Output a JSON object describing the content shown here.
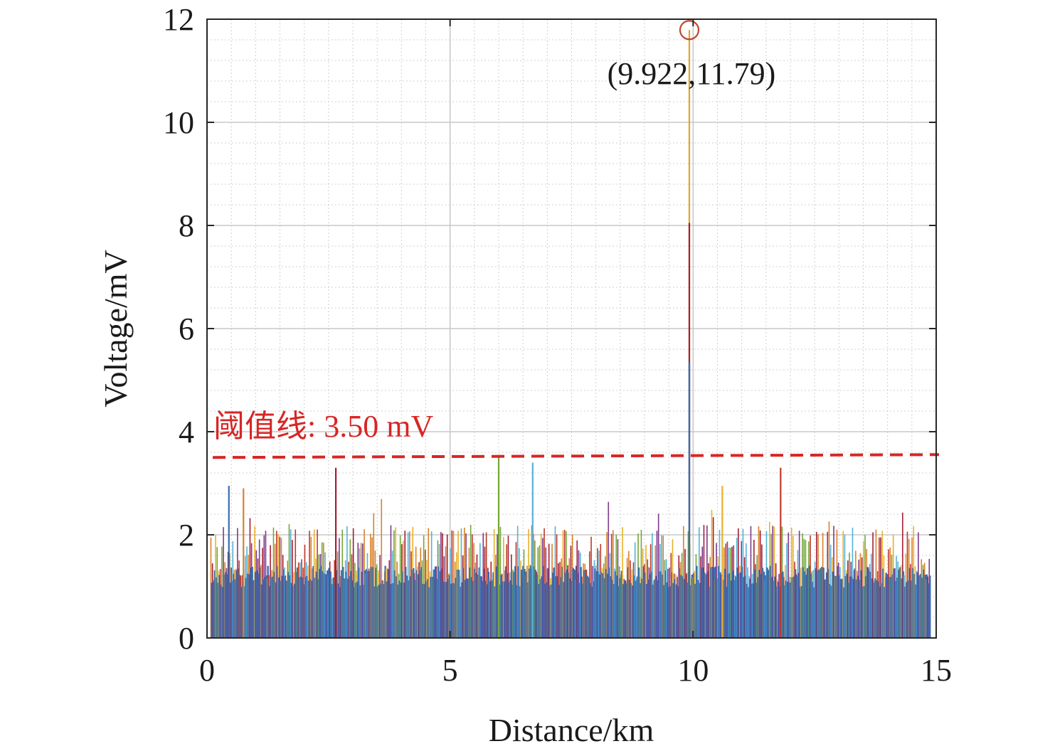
{
  "chart_data": {
    "type": "line",
    "title": "",
    "xlabel": "Distance/km",
    "ylabel": "Voltage/mV",
    "xlim": [
      0,
      15
    ],
    "ylim": [
      0,
      12
    ],
    "x_ticks": [
      0,
      5,
      10,
      15
    ],
    "y_ticks": [
      0,
      2,
      4,
      6,
      8,
      10,
      12
    ],
    "x_tick_labels": [
      "0",
      "5",
      "10",
      "15"
    ],
    "y_tick_labels": [
      "0",
      "2",
      "4",
      "6",
      "8",
      "10",
      "12"
    ],
    "grid": true,
    "minor_grid": true,
    "background_noise": {
      "x_range": [
        0.08,
        14.88
      ],
      "baseline_max": 1.4,
      "typical_peak": 2.0
    },
    "peaks": [
      {
        "x": 9.922,
        "y": 11.79
      },
      {
        "x": 6.0,
        "y": 3.5
      },
      {
        "x": 6.7,
        "y": 3.4
      },
      {
        "x": 2.65,
        "y": 3.3
      },
      {
        "x": 11.8,
        "y": 3.3
      },
      {
        "x": 0.45,
        "y": 2.95
      },
      {
        "x": 0.75,
        "y": 2.9
      },
      {
        "x": 10.6,
        "y": 2.95
      }
    ],
    "annotation": {
      "x": 9.922,
      "y": 11.79,
      "text": "(9.922,11.79)"
    },
    "threshold": {
      "value": 3.5,
      "label": "阈值线: 3.50 mV"
    },
    "colors": {
      "main_series": "#3a6cb0",
      "noise": [
        "#3a6cb0",
        "#d9822b",
        "#eab128",
        "#7d3a8c",
        "#74a63a",
        "#56b1d9",
        "#a21f34",
        "#c0392b"
      ],
      "threshold": "#d72626",
      "marker": "#c0472b",
      "grid": "#c8c8c8",
      "axes": "#262626"
    }
  }
}
